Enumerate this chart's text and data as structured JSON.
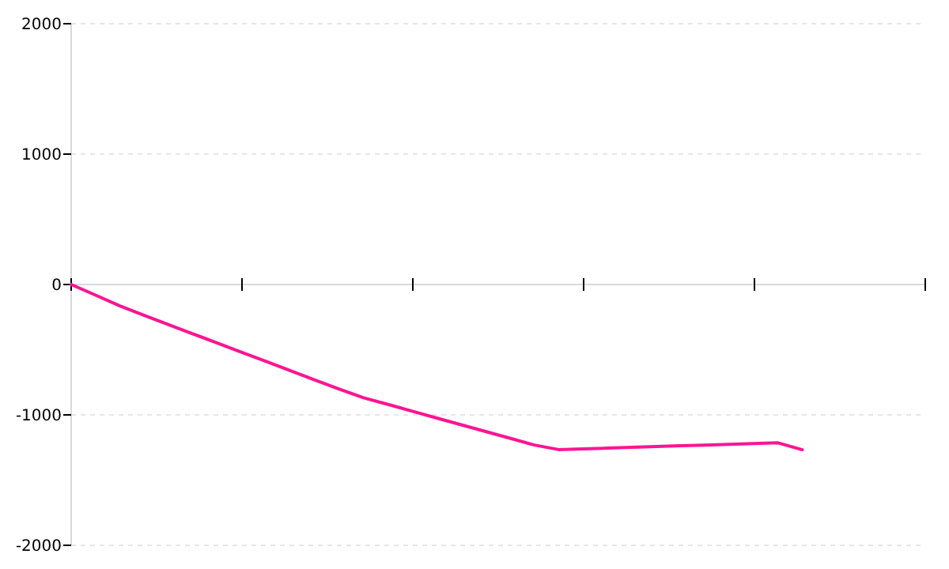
{
  "chart_data": {
    "type": "line",
    "categories": [
      null,
      null,
      null,
      null,
      null,
      null,
      null,
      null,
      null,
      null,
      null,
      null,
      null,
      null,
      null,
      null,
      null,
      null,
      null,
      null,
      null,
      null,
      null,
      null,
      null,
      null,
      null,
      null,
      null,
      null,
      null
    ],
    "series": [
      {
        "color": "#ff1493",
        "values": [
          0,
          -82,
          -164,
          -237,
          -308,
          -379,
          -449,
          -520,
          -590,
          -661,
          -732,
          -802,
          -869,
          -920,
          -972,
          -1024,
          -1076,
          -1127,
          -1179,
          -1231,
          -1266,
          -1261,
          -1255,
          -1249,
          -1243,
          -1237,
          -1232,
          -1226,
          -1220,
          -1214,
          -1267
        ]
      }
    ],
    "ylim": [
      -2000,
      2000
    ],
    "yticks": [
      -2000,
      -1000,
      0,
      1000,
      2000
    ],
    "grid": "y",
    "marker": "none",
    "line_style": "solid"
  }
}
